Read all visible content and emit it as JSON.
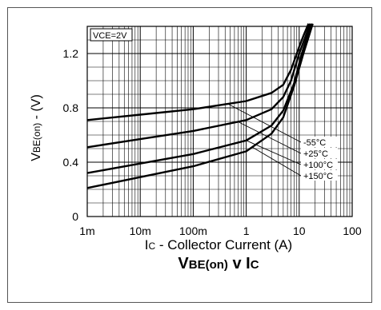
{
  "chart_data": {
    "type": "line",
    "title": "VBE(on) v IC",
    "title_main": "V",
    "title_sub": "BE(on)",
    "title_mid": " v I",
    "title_end": "C",
    "xlabel": "IC - Collector Current (A)",
    "xlabel_main": "I",
    "xlabel_sub": "C",
    "xlabel_rest": " - Collector Current (A)",
    "ylabel": "VBE(on) - (V)",
    "ylabel_main": "V",
    "ylabel_sub": "BE(on)",
    "ylabel_rest": " - (V)",
    "condition": "VCE=2V",
    "x_scale": "log",
    "xlim": [
      0.001,
      100
    ],
    "ylim": [
      0,
      1.4
    ],
    "grid": true,
    "x_tick_labels": [
      "1m",
      "10m",
      "100m",
      "1",
      "10",
      "100"
    ],
    "y_ticks": [
      0,
      0.4,
      0.8,
      1.2
    ],
    "y_tick_labels": [
      "0",
      "0.4",
      "0.8",
      "1.2"
    ],
    "series": [
      {
        "name": "-55°C",
        "x": [
          0.001,
          0.01,
          0.1,
          1,
          3,
          5,
          7,
          10,
          12,
          15
        ],
        "y": [
          0.71,
          0.75,
          0.79,
          0.85,
          0.91,
          0.97,
          1.08,
          1.25,
          1.33,
          1.42
        ]
      },
      {
        "name": "+25°C",
        "x": [
          0.001,
          0.01,
          0.1,
          1,
          3,
          5,
          7,
          10,
          13,
          16
        ],
        "y": [
          0.51,
          0.57,
          0.63,
          0.71,
          0.79,
          0.88,
          1.0,
          1.2,
          1.32,
          1.42
        ]
      },
      {
        "name": "+100°C",
        "x": [
          0.001,
          0.01,
          0.1,
          1,
          3,
          5,
          8,
          11,
          14,
          17
        ],
        "y": [
          0.32,
          0.39,
          0.46,
          0.56,
          0.67,
          0.78,
          0.98,
          1.19,
          1.32,
          1.42
        ]
      },
      {
        "name": "+150°C",
        "x": [
          0.001,
          0.01,
          0.1,
          1,
          3,
          5,
          8,
          12,
          15,
          18
        ],
        "y": [
          0.21,
          0.29,
          0.37,
          0.48,
          0.61,
          0.73,
          0.96,
          1.2,
          1.32,
          1.42
        ]
      }
    ]
  }
}
